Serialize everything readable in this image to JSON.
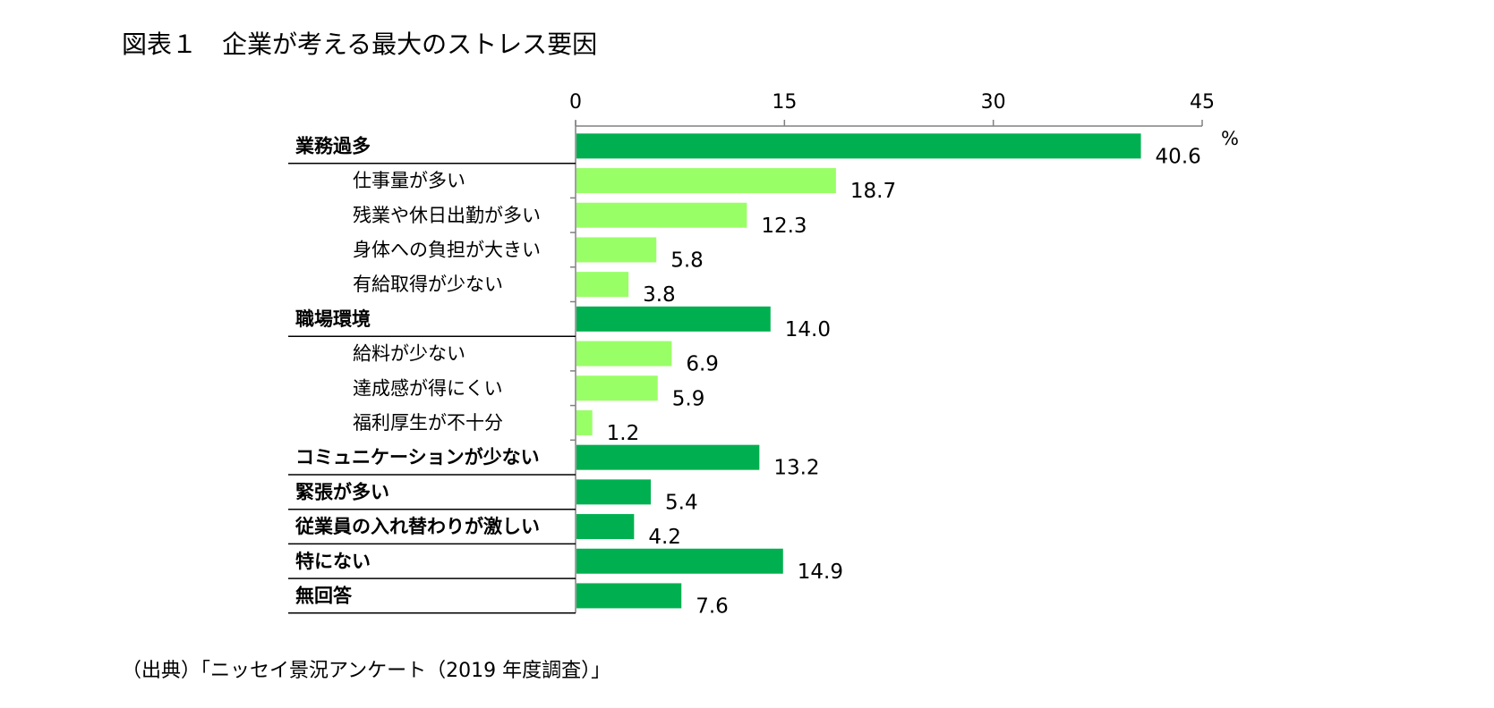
{
  "chart_data": {
    "type": "bar",
    "orientation": "horizontal",
    "title": "図表１　企業が考える最大のストレス要因",
    "unit": "%",
    "source": "（出典）「ニッセイ景況アンケート（2019 年度調査）」",
    "xlim": [
      0,
      45
    ],
    "ticks": [
      "0",
      "15",
      "30",
      "45"
    ],
    "grid": false,
    "colors": {
      "main": "#00b050",
      "sub": "#99ff66",
      "axis": "#808080"
    },
    "categories": [
      {
        "label": "業務過多",
        "value": 40.6,
        "value_label": "40.6",
        "level": "main"
      },
      {
        "label": "仕事量が多い",
        "value": 18.7,
        "value_label": "18.7",
        "level": "sub"
      },
      {
        "label": "残業や休日出勤が多い",
        "value": 12.3,
        "value_label": "12.3",
        "level": "sub"
      },
      {
        "label": "身体への負担が大きい",
        "value": 5.8,
        "value_label": "5.8",
        "level": "sub"
      },
      {
        "label": "有給取得が少ない",
        "value": 3.8,
        "value_label": "3.8",
        "level": "sub"
      },
      {
        "label": "職場環境",
        "value": 14.0,
        "value_label": "14.0",
        "level": "main"
      },
      {
        "label": "給料が少ない",
        "value": 6.9,
        "value_label": "6.9",
        "level": "sub"
      },
      {
        "label": "達成感が得にくい",
        "value": 5.9,
        "value_label": "5.9",
        "level": "sub"
      },
      {
        "label": "福利厚生が不十分",
        "value": 1.2,
        "value_label": "1.2",
        "level": "sub"
      },
      {
        "label": "コミュニケーションが少ない",
        "value": 13.2,
        "value_label": "13.2",
        "level": "main"
      },
      {
        "label": "緊張が多い",
        "value": 5.4,
        "value_label": "5.4",
        "level": "main"
      },
      {
        "label": "従業員の入れ替わりが激しい",
        "value": 4.2,
        "value_label": "4.2",
        "level": "main"
      },
      {
        "label": "特にない",
        "value": 14.9,
        "value_label": "14.9",
        "level": "main"
      },
      {
        "label": "無回答",
        "value": 7.6,
        "value_label": "7.6",
        "level": "main"
      }
    ]
  }
}
